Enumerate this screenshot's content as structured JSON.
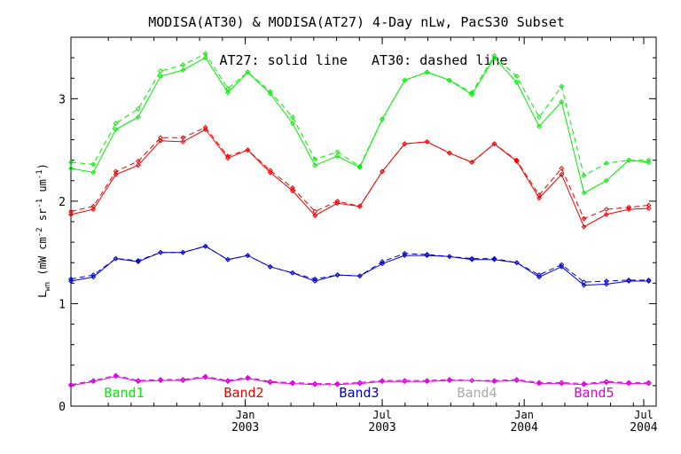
{
  "chart_data": {
    "type": "line",
    "title": "MODISA(AT30) & MODISA(AT27) 4-Day nLw, PacS30 Subset",
    "ylabel_base": "L",
    "ylabel_sub": "wn",
    "ylabel_rest": " (mW cm",
    "ylabel_sup1": "-2",
    "ylabel_sr": " sr",
    "ylabel_sup2": "-1",
    "ylabel_um": " um",
    "ylabel_sup3": "-1",
    "ylabel_close": ")",
    "annotation": "AT27: solid line   AT30: dashed line",
    "ylim": [
      0,
      3.6
    ],
    "xlim": [
      0,
      23.5
    ],
    "y_ticks": [
      {
        "value": 0,
        "label": "0"
      },
      {
        "value": 1,
        "label": "1"
      },
      {
        "value": 2,
        "label": "2"
      },
      {
        "value": 3,
        "label": "3"
      }
    ],
    "x_ticks": [
      {
        "value": 7.0,
        "label": "Jan",
        "year": "2003"
      },
      {
        "value": 12.5,
        "label": "Jul",
        "year": "2003"
      },
      {
        "value": 18.2,
        "label": "Jan",
        "year": "2004"
      },
      {
        "value": 23.0,
        "label": "Jul",
        "year": "2004"
      }
    ],
    "x": [
      0,
      0.9,
      1.8,
      2.7,
      3.6,
      4.5,
      5.4,
      6.3,
      7.1,
      8.0,
      8.9,
      9.8,
      10.7,
      11.6,
      12.5,
      13.4,
      14.3,
      15.2,
      16.1,
      17.0,
      17.9,
      18.8,
      19.7,
      20.6,
      21.5,
      22.4,
      23.2
    ],
    "series": [
      {
        "name": "Band1",
        "color": "#00ee00",
        "solid": [
          2.32,
          2.28,
          2.7,
          2.82,
          3.22,
          3.28,
          3.4,
          3.06,
          3.26,
          3.05,
          2.76,
          2.35,
          2.44,
          2.33,
          2.8,
          3.18,
          3.26,
          3.18,
          3.04,
          3.4,
          3.16,
          2.73,
          2.97,
          2.08,
          2.2,
          2.4,
          2.38
        ],
        "dashed": [
          2.38,
          2.36,
          2.76,
          2.9,
          3.27,
          3.33,
          3.44,
          3.1,
          3.26,
          3.07,
          2.82,
          2.41,
          2.48,
          2.34,
          2.8,
          3.18,
          3.26,
          3.18,
          3.06,
          3.42,
          3.22,
          2.82,
          3.12,
          2.25,
          2.37,
          2.4,
          2.4
        ]
      },
      {
        "name": "Band2",
        "color": "#ee0000",
        "solid": [
          1.87,
          1.92,
          2.26,
          2.35,
          2.59,
          2.58,
          2.7,
          2.42,
          2.5,
          2.28,
          2.1,
          1.86,
          1.98,
          1.95,
          2.29,
          2.56,
          2.58,
          2.47,
          2.38,
          2.56,
          2.39,
          2.03,
          2.26,
          1.75,
          1.87,
          1.92,
          1.93
        ],
        "dashed": [
          1.9,
          1.95,
          2.29,
          2.39,
          2.62,
          2.62,
          2.72,
          2.44,
          2.5,
          2.3,
          2.13,
          1.9,
          2.0,
          1.95,
          2.29,
          2.56,
          2.58,
          2.47,
          2.38,
          2.56,
          2.4,
          2.06,
          2.32,
          1.83,
          1.92,
          1.94,
          1.96
        ]
      },
      {
        "name": "Band3",
        "color": "#0000cc",
        "solid": [
          1.22,
          1.26,
          1.44,
          1.41,
          1.5,
          1.5,
          1.56,
          1.43,
          1.47,
          1.36,
          1.3,
          1.22,
          1.28,
          1.27,
          1.39,
          1.47,
          1.47,
          1.46,
          1.43,
          1.43,
          1.4,
          1.26,
          1.36,
          1.18,
          1.19,
          1.22,
          1.22
        ],
        "dashed": [
          1.24,
          1.28,
          1.44,
          1.42,
          1.5,
          1.5,
          1.56,
          1.43,
          1.47,
          1.36,
          1.3,
          1.24,
          1.28,
          1.27,
          1.41,
          1.49,
          1.48,
          1.46,
          1.44,
          1.44,
          1.4,
          1.28,
          1.38,
          1.21,
          1.22,
          1.23,
          1.23
        ]
      },
      {
        "name": "Band4",
        "color": "#aaaaaa",
        "solid": [],
        "dashed": []
      },
      {
        "name": "Band5",
        "color": "#dd00dd",
        "solid": [
          0.2,
          0.24,
          0.29,
          0.24,
          0.25,
          0.25,
          0.28,
          0.24,
          0.27,
          0.23,
          0.22,
          0.21,
          0.21,
          0.22,
          0.24,
          0.24,
          0.24,
          0.25,
          0.25,
          0.24,
          0.25,
          0.22,
          0.22,
          0.21,
          0.23,
          0.22,
          0.22
        ],
        "dashed": [
          0.21,
          0.25,
          0.3,
          0.25,
          0.26,
          0.26,
          0.29,
          0.25,
          0.28,
          0.24,
          0.23,
          0.22,
          0.22,
          0.23,
          0.25,
          0.25,
          0.25,
          0.26,
          0.25,
          0.25,
          0.26,
          0.23,
          0.23,
          0.22,
          0.24,
          0.23,
          0.23
        ]
      }
    ],
    "legend_placement": "bottom",
    "grid": false
  }
}
